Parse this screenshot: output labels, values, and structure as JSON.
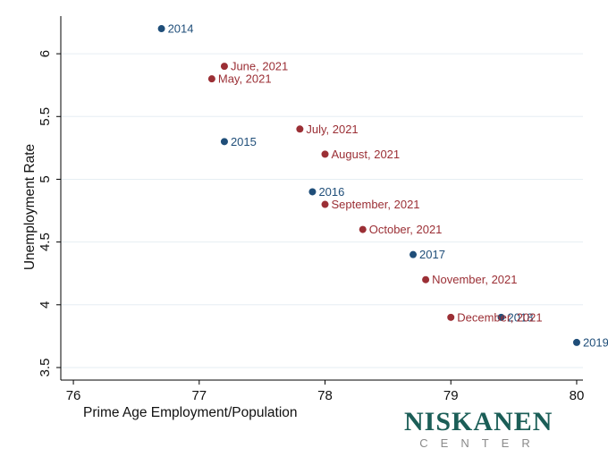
{
  "chart_data": {
    "type": "scatter",
    "title": "",
    "xlabel": "Prime Age Employment/Population",
    "ylabel": "Unemployment Rate",
    "xlim": [
      75.9,
      80.05
    ],
    "ylim": [
      3.4,
      6.3
    ],
    "xticks": [
      76,
      77,
      78,
      79,
      80
    ],
    "yticks": [
      3.5,
      4,
      4.5,
      5,
      5.5,
      6
    ],
    "grid": true,
    "legend": "none",
    "series": [
      {
        "color": "#1f4e79",
        "points": [
          {
            "x": 76.7,
            "y": 6.2,
            "label": "2014"
          },
          {
            "x": 77.2,
            "y": 5.3,
            "label": "2015"
          },
          {
            "x": 77.9,
            "y": 4.9,
            "label": "2016"
          },
          {
            "x": 78.7,
            "y": 4.4,
            "label": "2017"
          },
          {
            "x": 79.4,
            "y": 3.9,
            "label": "2018"
          },
          {
            "x": 80.0,
            "y": 3.7,
            "label": "2019"
          }
        ]
      },
      {
        "color": "#9b2f35",
        "points": [
          {
            "x": 77.1,
            "y": 5.8,
            "label": "May, 2021"
          },
          {
            "x": 77.2,
            "y": 5.9,
            "label": "June, 2021"
          },
          {
            "x": 77.8,
            "y": 5.4,
            "label": "July, 2021"
          },
          {
            "x": 78.0,
            "y": 5.2,
            "label": "August, 2021"
          },
          {
            "x": 78.0,
            "y": 4.8,
            "label": "September, 2021"
          },
          {
            "x": 78.3,
            "y": 4.6,
            "label": "October, 2021"
          },
          {
            "x": 78.8,
            "y": 4.2,
            "label": "November, 2021"
          },
          {
            "x": 79.0,
            "y": 3.9,
            "label": "December, 2021"
          }
        ]
      }
    ]
  },
  "logo": {
    "name": "NISKANEN",
    "sub": "CENTER",
    "name_color": "#1b5e57",
    "sub_color": "#8a8a8a"
  }
}
